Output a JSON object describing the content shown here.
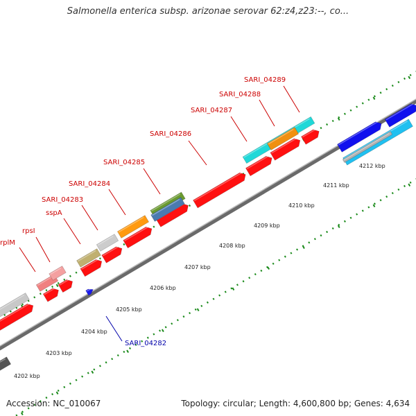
{
  "title": "Salmonella enterica subsp. arizonae serovar 62:z4,z23:--, co...",
  "footer": {
    "accession": "Accession: NC_010067",
    "topology": "Topology: circular; Length: 4,600,800 bp; Genes: 4,634"
  },
  "colors": {
    "backbone": "#8c8c8c",
    "cds": "#ff0000",
    "gene_label": "#cc0000",
    "minus_label": "#0000aa",
    "tick": "#1a8a1a"
  },
  "genes_labeled": [
    {
      "name": "rplM",
      "color": "#cc0000"
    },
    {
      "name": "rpsI",
      "color": "#cc0000"
    },
    {
      "name": "sspA",
      "color": "#cc0000"
    },
    {
      "name": "SARI_04283",
      "color": "#cc0000"
    },
    {
      "name": "SARI_04284",
      "color": "#cc0000"
    },
    {
      "name": "SARI_04285",
      "color": "#cc0000"
    },
    {
      "name": "SARI_04286",
      "color": "#cc0000"
    },
    {
      "name": "SARI_04287",
      "color": "#cc0000"
    },
    {
      "name": "SARI_04288",
      "color": "#cc0000"
    },
    {
      "name": "SARI_04289",
      "color": "#cc0000"
    },
    {
      "name": "SARI_04282",
      "color": "#0000aa"
    }
  ],
  "ticks": [
    "4202 kbp",
    "4203 kbp",
    "4204 kbp",
    "4205 kbp",
    "4206 kbp",
    "4207 kbp",
    "4208 kbp",
    "4209 kbp",
    "4210 kbp",
    "4211 kbp",
    "4212 kbp"
  ]
}
